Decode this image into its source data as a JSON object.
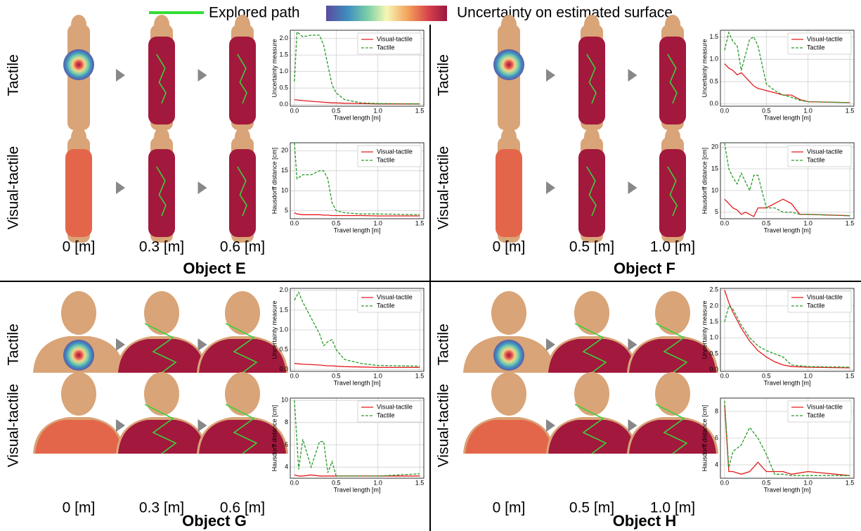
{
  "legend": {
    "path_label": "Explored path",
    "colorbar_label": "Uncertainty on estimated surface"
  },
  "panels": [
    {
      "title": "Object E",
      "row_labels": [
        "Tactile",
        "Visual-tactile"
      ],
      "steps": [
        "0 [m]",
        "0.3 [m]",
        "0.6 [m]"
      ]
    },
    {
      "title": "Object F",
      "row_labels": [
        "Tactile",
        "Visual-tactile"
      ],
      "steps": [
        "0 [m]",
        "0.5 [m]",
        "1.0 [m]"
      ]
    },
    {
      "title": "Object G",
      "row_labels": [
        "Tactile",
        "Visual-tactile"
      ],
      "steps": [
        "0 [m]",
        "0.3 [m]",
        "0.6 [m]"
      ]
    },
    {
      "title": "Object H",
      "row_labels": [
        "Tactile",
        "Visual-tactile"
      ],
      "steps": [
        "0 [m]",
        "0.5 [m]",
        "1.0 [m]"
      ]
    }
  ],
  "chart_data": [
    {
      "type": "line",
      "xlabel": "Travel length [m]",
      "ylabel": "Uncertainty measure",
      "grid": true,
      "legend": "upper right",
      "xlim": [
        -0.05,
        1.55
      ],
      "xticks": [
        {
          "value": 0,
          "label": "0.0"
        },
        {
          "value": 0.5,
          "label": "0.5"
        },
        {
          "value": 1,
          "label": "1.0"
        },
        {
          "value": 1.5,
          "label": "1.5"
        }
      ],
      "ylim": [
        -0.05,
        2.25
      ],
      "yticks": [
        {
          "value": 0,
          "label": "0.0"
        },
        {
          "value": 0.5,
          "label": "0.5"
        },
        {
          "value": 1,
          "label": "1.0"
        },
        {
          "value": 1.5,
          "label": "1.5"
        },
        {
          "value": 2,
          "label": "2.0"
        }
      ],
      "x": [
        0,
        0.03,
        0.1,
        0.2,
        0.3,
        0.35,
        0.4,
        0.45,
        0.5,
        0.6,
        0.8,
        1.0,
        1.5
      ],
      "series": [
        {
          "name": "Visual-tactile",
          "color": "#e31a1c",
          "style": "solid",
          "values": [
            0.15,
            0.14,
            0.12,
            0.1,
            0.08,
            0.07,
            0.06,
            0.05,
            0.05,
            0.04,
            0.03,
            0.02,
            0.02
          ]
        },
        {
          "name": "Tactile",
          "color": "#2a9a2a",
          "style": "dashed",
          "values": [
            0.7,
            2.2,
            2.05,
            2.1,
            2.1,
            1.8,
            1.2,
            0.6,
            0.35,
            0.15,
            0.05,
            0.03,
            0.02
          ]
        }
      ]
    },
    {
      "type": "line",
      "xlabel": "Travel length [m]",
      "ylabel": "Hausdorff distance [cm]",
      "grid": true,
      "legend": "upper right",
      "xlim": [
        -0.05,
        1.55
      ],
      "xticks": [
        {
          "value": 0,
          "label": "0.0"
        },
        {
          "value": 0.5,
          "label": "0.5"
        },
        {
          "value": 1,
          "label": "1.0"
        },
        {
          "value": 1.5,
          "label": "1.5"
        }
      ],
      "ylim": [
        3,
        22
      ],
      "yticks": [
        5,
        10,
        15,
        20
      ],
      "x": [
        0,
        0.03,
        0.1,
        0.2,
        0.3,
        0.35,
        0.4,
        0.45,
        0.5,
        0.6,
        0.8,
        1.0,
        1.5
      ],
      "series": [
        {
          "name": "Visual-tactile",
          "color": "#e31a1c",
          "style": "solid",
          "values": [
            4.5,
            4.2,
            4.0,
            4.0,
            4.0,
            3.9,
            3.9,
            3.8,
            3.8,
            3.8,
            3.8,
            3.7,
            3.7
          ]
        },
        {
          "name": "Tactile",
          "color": "#2a9a2a",
          "style": "dashed",
          "values": [
            22,
            13,
            14,
            14,
            15,
            15,
            13,
            7,
            5,
            4.5,
            4.2,
            4.2,
            4.0
          ]
        }
      ]
    },
    {
      "type": "line",
      "xlabel": "Travel length [m]",
      "ylabel": "Uncertainty measure",
      "grid": true,
      "legend": "upper right",
      "xlim": [
        -0.05,
        1.55
      ],
      "xticks": [
        {
          "value": 0,
          "label": "0.0"
        },
        {
          "value": 0.5,
          "label": "0.5"
        },
        {
          "value": 1,
          "label": "1.0"
        },
        {
          "value": 1.5,
          "label": "1.5"
        }
      ],
      "ylim": [
        -0.05,
        1.65
      ],
      "yticks": [
        {
          "value": 0,
          "label": "0.0"
        },
        {
          "value": 0.5,
          "label": "0.5"
        },
        {
          "value": 1,
          "label": "1.0"
        },
        {
          "value": 1.5,
          "label": "1.5"
        }
      ],
      "x": [
        0,
        0.05,
        0.1,
        0.15,
        0.2,
        0.25,
        0.3,
        0.35,
        0.4,
        0.5,
        0.6,
        0.7,
        0.8,
        0.9,
        1.0,
        1.5
      ],
      "series": [
        {
          "name": "Visual-tactile",
          "color": "#e31a1c",
          "style": "solid",
          "values": [
            0.9,
            0.8,
            0.75,
            0.65,
            0.7,
            0.6,
            0.5,
            0.4,
            0.35,
            0.3,
            0.25,
            0.2,
            0.2,
            0.1,
            0.05,
            0.03
          ]
        },
        {
          "name": "Tactile",
          "color": "#2a9a2a",
          "style": "dashed",
          "values": [
            1.2,
            1.6,
            1.4,
            1.3,
            0.75,
            1.1,
            1.45,
            1.5,
            1.3,
            0.45,
            0.3,
            0.2,
            0.15,
            0.08,
            0.05,
            0.03
          ]
        }
      ]
    },
    {
      "type": "line",
      "xlabel": "Travel length [m]",
      "ylabel": "Hausdorff distance [cm]",
      "grid": true,
      "legend": "upper right",
      "xlim": [
        -0.05,
        1.55
      ],
      "xticks": [
        {
          "value": 0,
          "label": "0.0"
        },
        {
          "value": 0.5,
          "label": "0.5"
        },
        {
          "value": 1,
          "label": "1.0"
        },
        {
          "value": 1.5,
          "label": "1.5"
        }
      ],
      "ylim": [
        3.5,
        21
      ],
      "yticks": [
        5,
        10,
        15,
        20
      ],
      "x": [
        0,
        0.05,
        0.1,
        0.15,
        0.2,
        0.25,
        0.3,
        0.35,
        0.4,
        0.5,
        0.6,
        0.7,
        0.8,
        0.9,
        1.0,
        1.5
      ],
      "series": [
        {
          "name": "Visual-tactile",
          "color": "#e31a1c",
          "style": "solid",
          "values": [
            8,
            7,
            6,
            5.5,
            4.5,
            5,
            4.5,
            4,
            6,
            6,
            7,
            8,
            7,
            4.5,
            4.5,
            4.2
          ]
        },
        {
          "name": "Tactile",
          "color": "#2a9a2a",
          "style": "dashed",
          "values": [
            21,
            15,
            13,
            11.5,
            14,
            12,
            10,
            13.5,
            13.5,
            6,
            6,
            5,
            5,
            4.5,
            4.5,
            4.2
          ]
        }
      ]
    },
    {
      "type": "line",
      "xlabel": "Travel length [m]",
      "ylabel": "Uncertainty measure",
      "grid": true,
      "legend": "upper right",
      "xlim": [
        -0.05,
        1.55
      ],
      "xticks": [
        {
          "value": 0,
          "label": "0.0"
        },
        {
          "value": 0.5,
          "label": "0.5"
        },
        {
          "value": 1,
          "label": "1.0"
        },
        {
          "value": 1.5,
          "label": "1.5"
        }
      ],
      "ylim": [
        -0.05,
        2.05
      ],
      "yticks": [
        {
          "value": 0,
          "label": "0.0"
        },
        {
          "value": 0.5,
          "label": "0.5"
        },
        {
          "value": 1,
          "label": "1.0"
        },
        {
          "value": 1.5,
          "label": "1.5"
        },
        {
          "value": 2,
          "label": "2.0"
        }
      ],
      "x": [
        0,
        0.05,
        0.1,
        0.2,
        0.3,
        0.35,
        0.4,
        0.45,
        0.5,
        0.6,
        0.8,
        1.0,
        1.5
      ],
      "series": [
        {
          "name": "Visual-tactile",
          "color": "#e31a1c",
          "style": "solid",
          "values": [
            0.15,
            0.14,
            0.13,
            0.12,
            0.11,
            0.1,
            0.09,
            0.09,
            0.08,
            0.07,
            0.06,
            0.05,
            0.05
          ]
        },
        {
          "name": "Tactile",
          "color": "#2a9a2a",
          "style": "dashed",
          "values": [
            1.75,
            1.95,
            1.7,
            1.3,
            0.9,
            0.6,
            0.7,
            0.75,
            0.5,
            0.25,
            0.15,
            0.1,
            0.08
          ]
        }
      ]
    },
    {
      "type": "line",
      "xlabel": "Travel length [m]",
      "ylabel": "Hausdorff distance [cm]",
      "grid": true,
      "legend": "upper right",
      "xlim": [
        -0.05,
        1.55
      ],
      "xticks": [
        {
          "value": 0,
          "label": "0.0"
        },
        {
          "value": 0.5,
          "label": "0.5"
        },
        {
          "value": 1,
          "label": "1.0"
        },
        {
          "value": 1.5,
          "label": "1.5"
        }
      ],
      "ylim": [
        3,
        10.2
      ],
      "yticks": [
        4,
        6,
        8,
        10
      ],
      "x": [
        0,
        0.05,
        0.1,
        0.2,
        0.3,
        0.35,
        0.4,
        0.45,
        0.5,
        0.6,
        0.8,
        1.0,
        1.5
      ],
      "series": [
        {
          "name": "Visual-tactile",
          "color": "#e31a1c",
          "style": "solid",
          "values": [
            3.3,
            3.2,
            3.2,
            3.3,
            3.2,
            3.2,
            3.2,
            3.2,
            3.2,
            3.2,
            3.2,
            3.2,
            3.2
          ]
        },
        {
          "name": "Tactile",
          "color": "#2a9a2a",
          "style": "dashed",
          "values": [
            10,
            3.8,
            6.5,
            4,
            6.3,
            6.3,
            3.5,
            4.5,
            3.2,
            3.2,
            3.2,
            3.2,
            3.4
          ]
        }
      ]
    },
    {
      "type": "line",
      "xlabel": "Travel length [m]",
      "ylabel": "Uncertainty measure",
      "grid": true,
      "legend": "upper right",
      "xlim": [
        -0.05,
        1.55
      ],
      "xticks": [
        {
          "value": 0,
          "label": "0.0"
        },
        {
          "value": 0.5,
          "label": "0.5"
        },
        {
          "value": 1,
          "label": "1.0"
        },
        {
          "value": 1.5,
          "label": "1.5"
        }
      ],
      "ylim": [
        -0.05,
        2.55
      ],
      "yticks": [
        {
          "value": 0,
          "label": "0.0"
        },
        {
          "value": 0.5,
          "label": "0.5"
        },
        {
          "value": 1,
          "label": "1.0"
        },
        {
          "value": 1.5,
          "label": "1.5"
        },
        {
          "value": 2,
          "label": "2.0"
        },
        {
          "value": 2.5,
          "label": "2.5"
        }
      ],
      "x": [
        0,
        0.05,
        0.1,
        0.2,
        0.3,
        0.4,
        0.5,
        0.6,
        0.7,
        0.8,
        1.0,
        1.5
      ],
      "series": [
        {
          "name": "Visual-tactile",
          "color": "#e31a1c",
          "style": "solid",
          "values": [
            2.5,
            2.1,
            1.8,
            1.3,
            0.9,
            0.6,
            0.4,
            0.25,
            0.15,
            0.1,
            0.08,
            0.06
          ]
        },
        {
          "name": "Tactile",
          "color": "#2a9a2a",
          "style": "dashed",
          "values": [
            1.5,
            2.0,
            1.9,
            1.4,
            1.0,
            0.75,
            0.6,
            0.5,
            0.4,
            0.15,
            0.1,
            0.08
          ]
        }
      ]
    },
    {
      "type": "line",
      "xlabel": "Travel length [m]",
      "ylabel": "Hausdorff distance [cm]",
      "grid": true,
      "legend": "upper right",
      "xlim": [
        -0.05,
        1.55
      ],
      "xticks": [
        {
          "value": 0,
          "label": "0.0"
        },
        {
          "value": 0.5,
          "label": "0.5"
        },
        {
          "value": 1,
          "label": "1.0"
        },
        {
          "value": 1.5,
          "label": "1.5"
        }
      ],
      "ylim": [
        3,
        9
      ],
      "yticks": [
        4,
        6,
        8
      ],
      "x": [
        0,
        0.05,
        0.1,
        0.2,
        0.3,
        0.4,
        0.5,
        0.6,
        0.7,
        0.8,
        1.0,
        1.5
      ],
      "series": [
        {
          "name": "Visual-tactile",
          "color": "#e31a1c",
          "style": "solid",
          "values": [
            8.5,
            3.5,
            3.5,
            3.3,
            3.5,
            4.2,
            3.5,
            3.5,
            3.5,
            3.3,
            3.5,
            3.2
          ]
        },
        {
          "name": "Tactile",
          "color": "#2a9a2a",
          "style": "dashed",
          "values": [
            8.8,
            3.8,
            5,
            5.5,
            6.8,
            6,
            4.8,
            3.3,
            3.3,
            3.2,
            3.2,
            3.2
          ]
        }
      ]
    }
  ]
}
